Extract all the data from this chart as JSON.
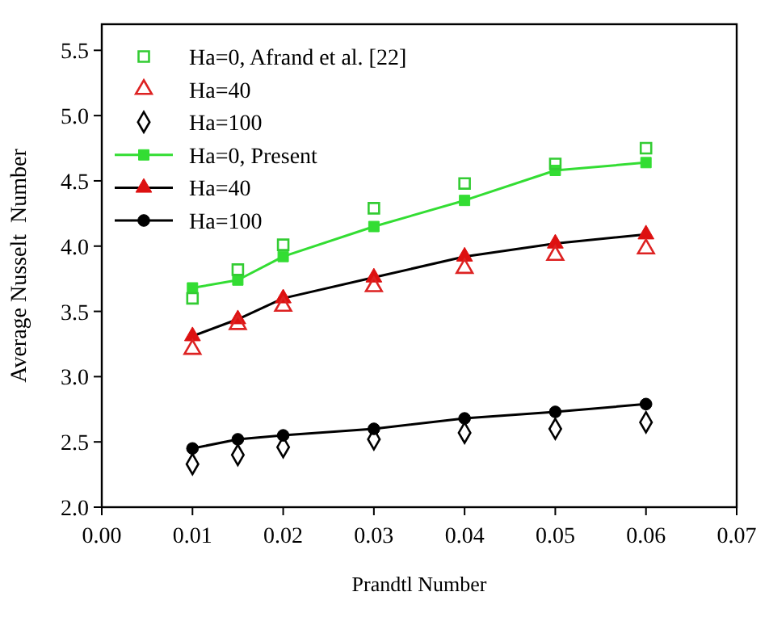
{
  "chart_data": {
    "type": "line",
    "xlabel": "Prandtl Number",
    "ylabel": "Average Nusselt  Number",
    "x": [
      0.01,
      0.015,
      0.02,
      0.03,
      0.04,
      0.05,
      0.06
    ],
    "series": [
      {
        "name": "Ha=0, Afrand et al. [22]",
        "type": "scatter",
        "marker": "square",
        "color": "#33cc33",
        "values": [
          3.6,
          3.82,
          4.01,
          4.29,
          4.48,
          4.63,
          4.75
        ]
      },
      {
        "name": "Ha=40",
        "type": "scatter",
        "marker": "triangle",
        "color": "#dd2222",
        "values": [
          3.21,
          3.4,
          3.54,
          3.69,
          3.83,
          3.93,
          3.98
        ]
      },
      {
        "name": "Ha=100",
        "type": "scatter",
        "marker": "diamond",
        "color": "#000000",
        "values": [
          2.33,
          2.4,
          2.46,
          2.52,
          2.57,
          2.6,
          2.65
        ]
      },
      {
        "name": "Ha=0, Present",
        "marker": "square",
        "color": "#33dd33",
        "values": [
          3.68,
          3.74,
          3.92,
          4.15,
          4.35,
          4.58,
          4.64
        ]
      },
      {
        "name": "Ha=40",
        "marker": "triangle",
        "color": "#000000",
        "colors": [
          "#dd1111",
          "#dd1111",
          "#dd1111",
          "#dd1111",
          "#dd1111",
          "#dd1111",
          "#dd1111"
        ],
        "values": [
          3.31,
          3.44,
          3.6,
          3.76,
          3.92,
          4.02,
          4.09
        ]
      },
      {
        "name": "Ha=100",
        "marker": "circle",
        "color": "#000000",
        "values": [
          2.45,
          2.52,
          2.55,
          2.6,
          2.68,
          2.73,
          2.79
        ]
      }
    ],
    "xlim": [
      0,
      0.07
    ],
    "xticks": [
      {
        "value": 0,
        "label": "0.00"
      },
      0.01,
      0.02,
      0.03,
      0.04,
      0.05,
      0.06,
      0.07
    ],
    "ylim": [
      2,
      5.7
    ],
    "yticks": [
      {
        "value": 2,
        "label": "2.0"
      },
      2.5,
      {
        "value": 3,
        "label": "3.0"
      },
      3.5,
      {
        "value": 4,
        "label": "4.0"
      },
      4.5,
      {
        "value": 5,
        "label": "5.0"
      },
      5.5
    ],
    "legend": "top left",
    "grid": false
  }
}
